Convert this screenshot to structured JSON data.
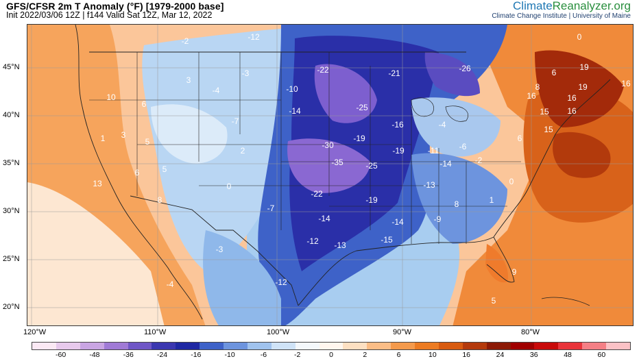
{
  "header": {
    "title": "GFS/CFSR 2m T Anomaly (°F) [1979-2000 base]",
    "subtitle": "Init 2022/03/06 12Z | f144 Valid Sat 12Z, Mar 12, 2022",
    "brand_part1": "Climate",
    "brand_part2": "Reanalyzer.org",
    "brand_sub": "Climate Change Institute | University of Maine"
  },
  "lat_labels": [
    "45°N",
    "40°N",
    "35°N",
    "30°N",
    "25°N",
    "20°N"
  ],
  "lon_labels": [
    "120°W",
    "110°W",
    "100°W",
    "90°W",
    "80°W"
  ],
  "colorbar": {
    "labels": [
      "-60",
      "-48",
      "-36",
      "-24",
      "-16",
      "-10",
      "-6",
      "-2",
      "0",
      "2",
      "6",
      "10",
      "16",
      "24",
      "36",
      "48",
      "60"
    ],
    "colors": [
      "#fbe9f4",
      "#e7c9ec",
      "#c9a5e3",
      "#a07ad6",
      "#6f56c6",
      "#3b37b0",
      "#1f28a3",
      "#3e62c8",
      "#6d94de",
      "#a0c3ee",
      "#cfe3f7",
      "#f4f8fb",
      "#fff6ee",
      "#fde0c2",
      "#fbbd86",
      "#f49a4c",
      "#ec7b22",
      "#d85b10",
      "#b43a0c",
      "#8c1a06",
      "#a00000",
      "#c80a0a",
      "#e8343a",
      "#f47f85",
      "#fbc2c6"
    ]
  },
  "anomalies": [
    "-12",
    "-2",
    "-3",
    "3",
    "10",
    "6",
    "3",
    "-4",
    "5",
    "1",
    "5",
    "-7",
    "6",
    "13",
    "0",
    "2",
    "-3",
    "8",
    "-4",
    "-12",
    "-22",
    "-10",
    "-14",
    "-21",
    "-26",
    "-25",
    "-30",
    "-35",
    "-19",
    "-25",
    "-16",
    "-19",
    "-22",
    "-19",
    "-14",
    "-12",
    "-13",
    "-7",
    "-15",
    "-14",
    "-11",
    "-13",
    "-4",
    "-6",
    "-14",
    "-2",
    "-9",
    "8",
    "1",
    "0",
    "6",
    "19",
    "6",
    "8",
    "19",
    "16",
    "16",
    "15",
    "16",
    "16",
    "15",
    "9",
    "5",
    "0"
  ],
  "map_features": [
    "land-temperature-anomaly",
    "ocean-temperature-anomaly",
    "state-borders",
    "country-borders",
    "coastlines",
    "latitude-grid",
    "longitude-grid"
  ]
}
